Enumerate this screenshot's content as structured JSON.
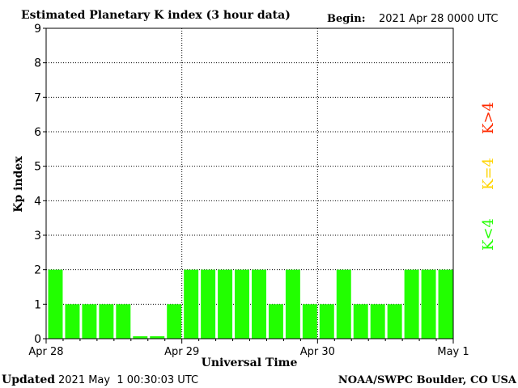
{
  "header": {
    "title": "Estimated Planetary K index (3 hour data)",
    "begin_label": "Begin:",
    "begin_value": "2021 Apr 28 0000 UTC"
  },
  "footer": {
    "updated_label": "Updated",
    "updated_value": "2021 May  1 00:30:03 UTC",
    "source": "NOAA/SWPC Boulder, CO USA"
  },
  "legend": [
    {
      "label": "K>4",
      "color": "#ff2a00"
    },
    {
      "label": "K=4",
      "color": "#ffd400"
    },
    {
      "label": "K<4",
      "color": "#22ff00"
    }
  ],
  "chart_data": {
    "type": "bar",
    "title": "Estimated Planetary K index (3 hour data)",
    "xlabel": "Universal Time",
    "ylabel": "Kp index",
    "ylim": [
      0,
      9
    ],
    "yticks": [
      "0",
      "1",
      "2",
      "3",
      "4",
      "5",
      "6",
      "7",
      "8",
      "9"
    ],
    "xtick_labels": [
      "Apr 28",
      "Apr 29",
      "Apr 30",
      "May 1"
    ],
    "bar_color": "#22ff00",
    "grid": "dotted, horizontal at each integer, vertical at day boundaries",
    "values": [
      2,
      1,
      1,
      1,
      1,
      0.07,
      0.07,
      1,
      2,
      2,
      2,
      2,
      2,
      1,
      2,
      1,
      1,
      2,
      1,
      1,
      1,
      2,
      2,
      2
    ]
  }
}
